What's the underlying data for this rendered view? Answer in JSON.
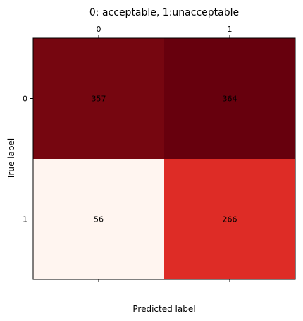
{
  "chart_data": {
    "type": "heatmap",
    "title": "0: acceptable, 1:unacceptable",
    "xlabel": "Predicted label",
    "ylabel": "True label",
    "x_categories": [
      "0",
      "1"
    ],
    "y_categories": [
      "0",
      "1"
    ],
    "values": [
      [
        357,
        364
      ],
      [
        56,
        266
      ]
    ],
    "colormap": "Reds",
    "cell_colors": [
      [
        "#760610",
        "#67000d"
      ],
      [
        "#fff5f0",
        "#de2c26"
      ]
    ],
    "x_ticks_position": "top",
    "grid": false,
    "legend": "none"
  }
}
